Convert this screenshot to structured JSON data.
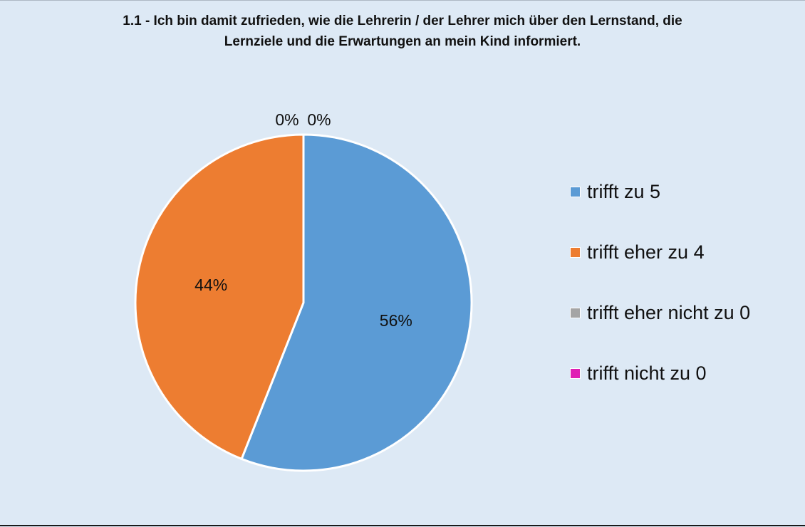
{
  "chart_data": {
    "type": "pie",
    "title_lines": [
      "1.1 - Ich bin damit zufrieden, wie die Lehrerin / der Lehrer mich über den Lernstand, die",
      "Lernziele und die Erwartungen an mein Kind informiert."
    ],
    "slices": [
      {
        "label": "trifft zu 5",
        "percent": 56,
        "display": "56%",
        "color": "#5b9bd5"
      },
      {
        "label": "trifft eher zu 4",
        "percent": 44,
        "display": "44%",
        "color": "#ed7d31"
      },
      {
        "label": "trifft eher nicht zu 0",
        "percent": 0,
        "display": "0%",
        "color": "#a5a5a5"
      },
      {
        "label": "trifft nicht zu 0",
        "percent": 0,
        "display": "0%",
        "color": "#e01fb4"
      }
    ],
    "legend_position": "right"
  }
}
